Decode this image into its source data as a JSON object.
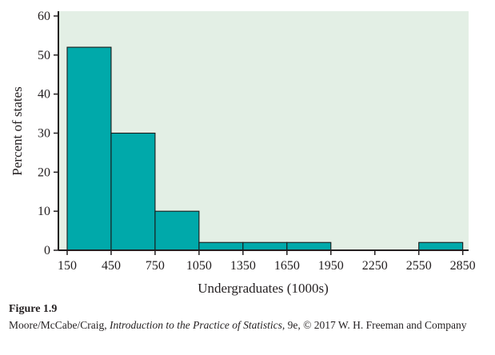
{
  "chart_data": {
    "type": "bar",
    "subtype": "histogram",
    "bin_edges": [
      150,
      450,
      750,
      1050,
      1350,
      1650,
      1950,
      2250,
      2550,
      2850
    ],
    "values": [
      52,
      30,
      10,
      2,
      2,
      2,
      0,
      0,
      2
    ],
    "xlabel": "Undergraduates (1000s)",
    "ylabel": "Percent of states",
    "x_ticks": [
      "150",
      "450",
      "750",
      "1050",
      "1350",
      "1650",
      "1950",
      "2250",
      "2550",
      "2850"
    ],
    "y_ticks": [
      "0",
      "10",
      "20",
      "30",
      "40",
      "50",
      "60"
    ],
    "xlim": [
      90,
      2890
    ],
    "ylim": [
      0,
      60
    ],
    "grid": false,
    "colors": {
      "plot_background": "#e3efe5",
      "bar_fill": "#00a9aa",
      "bar_stroke": "#1a1a1a",
      "axis": "#231f20"
    }
  },
  "caption": {
    "figure_label": "Figure 1.9",
    "authors": "Moore/McCabe/Craig, ",
    "book_title": "Introduction to the Practice of Statistics",
    "edition_rest": ", 9e, © 2017 W. H. Freeman and Company"
  }
}
